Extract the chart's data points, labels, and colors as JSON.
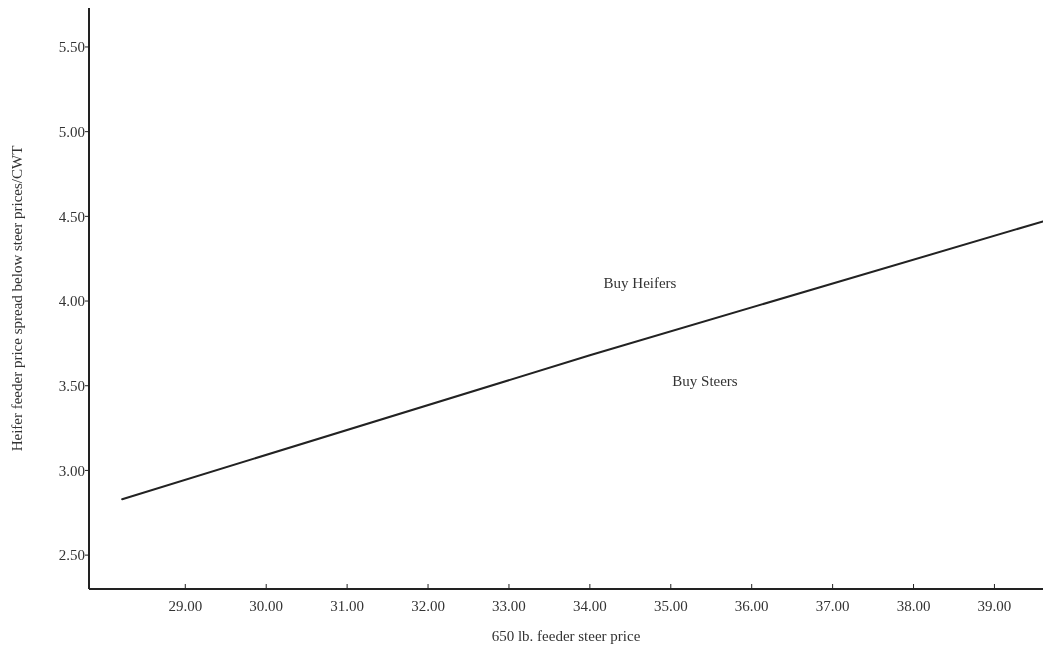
{
  "chart_data": {
    "type": "line",
    "xlabel": "650 lb. feeder steer price",
    "ylabel": "Heifer feeder price spread below steer prices/CWT",
    "x": [
      28.22,
      34,
      39.6
    ],
    "series": [
      {
        "color": "#222222",
        "values": [
          2.83,
          3.68,
          4.47
        ]
      }
    ],
    "xlim": [
      27.81,
      39.6
    ],
    "ylim": [
      2.3,
      5.73
    ],
    "xticks": [
      {
        "value": 29,
        "label": "29.00"
      },
      {
        "value": 30,
        "label": "30.00"
      },
      {
        "value": 31,
        "label": "31.00"
      },
      {
        "value": 32,
        "label": "32.00"
      },
      {
        "value": 33,
        "label": "33.00"
      },
      {
        "value": 34,
        "label": "34.00"
      },
      {
        "value": 35,
        "label": "35.00"
      },
      {
        "value": 36,
        "label": "36.00"
      },
      {
        "value": 37,
        "label": "37.00"
      },
      {
        "value": 38,
        "label": "38.00"
      },
      {
        "value": 39,
        "label": "39.00"
      }
    ],
    "yticks": [
      {
        "value": 2.5,
        "label": "2.50"
      },
      {
        "value": 3,
        "label": "3.00"
      },
      {
        "value": 3.5,
        "label": "3.50"
      },
      {
        "value": 4,
        "label": "4.00"
      },
      {
        "value": 4.5,
        "label": "4.50"
      },
      {
        "value": 5,
        "label": "5.00"
      },
      {
        "value": 5.5,
        "label": "5.50"
      }
    ],
    "annotations": [
      "Buy Heifers",
      "Buy Steers"
    ],
    "grid": false,
    "marker": "none",
    "line_style": "solid"
  }
}
